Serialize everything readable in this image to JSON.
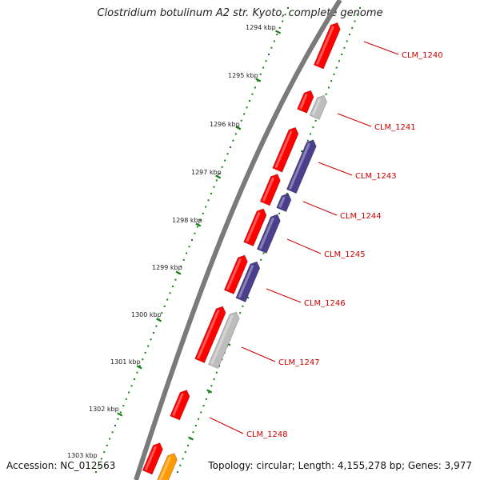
{
  "title": "Clostridium botulinum A2 str. Kyoto, complete genome",
  "accession": "Accession: NC_012563",
  "summary": "Topology: circular; Length: 4,155,278 bp; Genes: 3,977",
  "ticks": [
    "1294 kbp",
    "1295 kbp",
    "1296 kbp",
    "1297 kbp",
    "1298 kbp",
    "1299 kbp",
    "1300 kbp",
    "1301 kbp",
    "1302 kbp",
    "1303 kbp"
  ],
  "genes": [
    {
      "label": "CLM_1240"
    },
    {
      "label": "CLM_1241"
    },
    {
      "label": "CLM_1243"
    },
    {
      "label": "CLM_1244"
    },
    {
      "label": "CLM_1245"
    },
    {
      "label": "CLM_1246"
    },
    {
      "label": "CLM_1247"
    },
    {
      "label": "CLM_1248"
    }
  ],
  "colors": {
    "cds": "#ff0000",
    "cds_dark": "#cc0000",
    "purple": "#4a3f8c",
    "gray": "#bdbdbd",
    "orange": "#ff9900",
    "green": "#1a7f1a",
    "backbone": "#7a7a7a"
  }
}
